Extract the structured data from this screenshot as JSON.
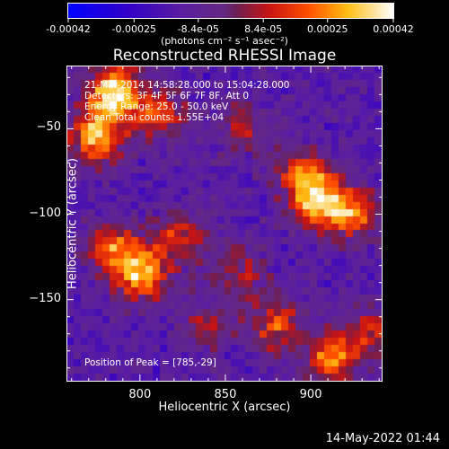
{
  "chart_data": {
    "type": "heatmap",
    "title": "Reconstructed RHESSI Image",
    "xlabel": "Heliocentric X (arcsec)",
    "ylabel": "Heliocentric Y (arcsec)",
    "xlim": [
      757,
      942
    ],
    "ylim": [
      -198,
      -13
    ],
    "x_ticks": [
      800,
      850,
      900
    ],
    "y_ticks": [
      -50,
      -100,
      -150
    ],
    "colorbar": {
      "range": [
        -0.00042,
        0.00042
      ],
      "tick_values": [
        -0.00042,
        -0.00025,
        -8.4e-05,
        8.4e-05,
        0.00025,
        0.00042
      ],
      "tick_labels": [
        "-0.00042",
        "-0.00025",
        "-8.4e-05",
        "8.4e-05",
        "0.00025",
        "0.00042"
      ],
      "unit_label": "(photons cm⁻² s⁻¹ asec⁻²)"
    },
    "annotations": {
      "time_range": "21-Mar-2014 14:58:28.000 to 15:04:28.000",
      "detectors": "Detectors: 3F 4F 5F 6F 7F 8F, Att 0",
      "energy_range": "Energy Range: 25.0 - 50.0 keV",
      "clean_counts": "Clean    Total counts: 1.55E+04",
      "peak_position": "Position of Peak = [785,-29]"
    },
    "hotspots": [
      {
        "x": 785,
        "y": -29,
        "intensity": 1.0
      },
      {
        "x": 775,
        "y": -55,
        "intensity": 0.85
      },
      {
        "x": 812,
        "y": -42,
        "intensity": 0.55
      },
      {
        "x": 800,
        "y": -135,
        "intensity": 0.85
      },
      {
        "x": 783,
        "y": -120,
        "intensity": 0.6
      },
      {
        "x": 824,
        "y": -115,
        "intensity": 0.5
      },
      {
        "x": 905,
        "y": -92,
        "intensity": 0.9
      },
      {
        "x": 925,
        "y": -100,
        "intensity": 0.65
      },
      {
        "x": 895,
        "y": -75,
        "intensity": 0.5
      },
      {
        "x": 880,
        "y": -165,
        "intensity": 0.55
      },
      {
        "x": 912,
        "y": -185,
        "intensity": 0.65
      },
      {
        "x": 935,
        "y": -170,
        "intensity": 0.45
      },
      {
        "x": 858,
        "y": -135,
        "intensity": 0.4
      },
      {
        "x": 840,
        "y": -165,
        "intensity": 0.35
      },
      {
        "x": 860,
        "y": -50,
        "intensity": 0.35
      }
    ]
  },
  "footer": {
    "date": "14-May-2022 01:44"
  }
}
